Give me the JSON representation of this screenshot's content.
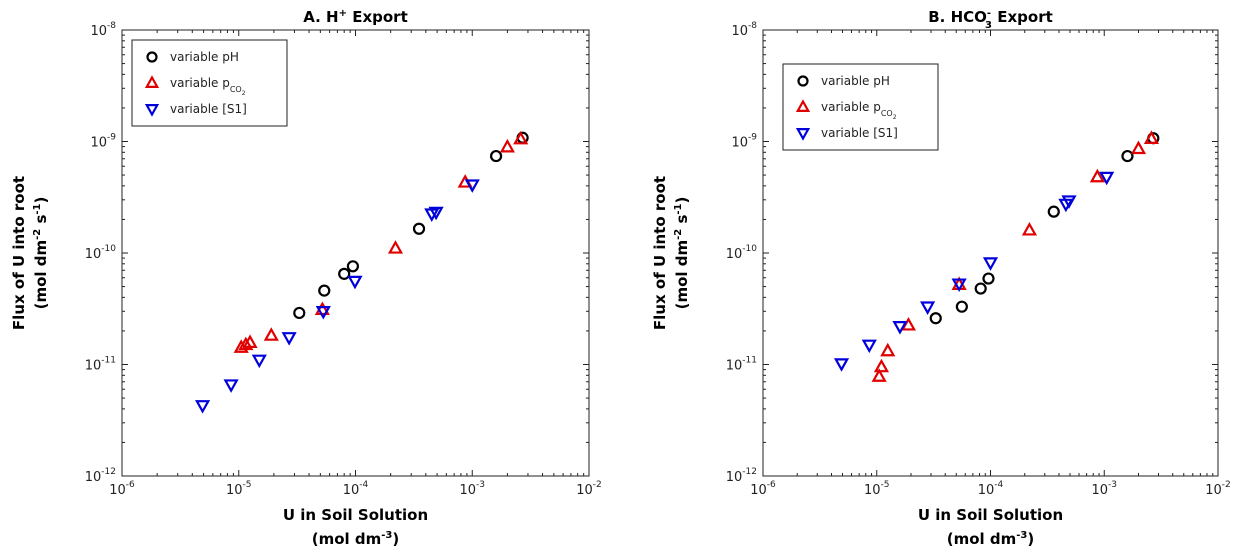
{
  "chart_data": [
    {
      "type": "scatter",
      "title_letter": "A. H",
      "title_sup": "+",
      "title_rest": " Export",
      "xlabel_line1": "U in Soil Solution",
      "xlabel_line2_pre": "(mol dm",
      "xlabel_line2_sup": "-3",
      "xlabel_line2_post": ")",
      "ylabel_line1": "Flux of U into root",
      "ylabel_line2_pre": "(mol dm",
      "ylabel_line2_sup1": "-2",
      "ylabel_line2_mid": " s",
      "ylabel_line2_sup2": "-1",
      "ylabel_line2_post": ")",
      "x_scale": "log",
      "y_scale": "log",
      "xlim": [
        1e-06,
        0.01
      ],
      "ylim": [
        1e-12,
        1e-08
      ],
      "x_ticks": [
        {
          "base": "10",
          "exp": "-6",
          "value": 1e-06
        },
        {
          "base": "10",
          "exp": "-5",
          "value": 1e-05
        },
        {
          "base": "10",
          "exp": "-4",
          "value": 0.0001
        },
        {
          "base": "10",
          "exp": "-3",
          "value": 0.001
        },
        {
          "base": "10",
          "exp": "-2",
          "value": 0.01
        }
      ],
      "y_ticks": [
        {
          "base": "10",
          "exp": "-12",
          "value": 1e-12
        },
        {
          "base": "10",
          "exp": "-11",
          "value": 1e-11
        },
        {
          "base": "10",
          "exp": "-10",
          "value": 1e-10
        },
        {
          "base": "10",
          "exp": "-9",
          "value": 1e-09
        },
        {
          "base": "10",
          "exp": "-8",
          "value": 1e-08
        }
      ],
      "legend_position": "top-left",
      "series": [
        {
          "name": "variable pH",
          "marker": "circle",
          "color": "#000000",
          "points": [
            [
              3.3e-05,
              2.9e-11
            ],
            [
              5.4e-05,
              4.6e-11
            ],
            [
              8e-05,
              6.5e-11
            ],
            [
              9.5e-05,
              7.6e-11
            ],
            [
              0.00035,
              1.65e-10
            ],
            [
              0.0016,
              7.4e-10
            ],
            [
              0.0027,
              1.08e-09
            ]
          ]
        },
        {
          "name": "variable p",
          "name_sub": "CO",
          "name_sub2": "2",
          "marker": "triangle-up",
          "color": "#e00000",
          "points": [
            [
              1.05e-05,
              1.42e-11
            ],
            [
              1.15e-05,
              1.5e-11
            ],
            [
              1.25e-05,
              1.57e-11
            ],
            [
              1.9e-05,
              1.82e-11
            ],
            [
              5.2e-05,
              3.1e-11
            ],
            [
              0.00022,
              1.1e-10
            ],
            [
              0.00087,
              4.3e-10
            ],
            [
              0.002,
              8.9e-10
            ],
            [
              0.0026,
              1.05e-09
            ]
          ]
        },
        {
          "name": "variable [S1]",
          "marker": "triangle-down",
          "color": "#0000dd",
          "points": [
            [
              4.9e-06,
              4.3e-12
            ],
            [
              8.6e-06,
              6.6e-12
            ],
            [
              1.5e-05,
              1.1e-11
            ],
            [
              2.7e-05,
              1.75e-11
            ],
            [
              5.3e-05,
              3e-11
            ],
            [
              9.9e-05,
              5.6e-11
            ],
            [
              0.00045,
              2.25e-10
            ],
            [
              0.00049,
              2.33e-10
            ],
            [
              0.001,
              4.1e-10
            ]
          ]
        }
      ]
    },
    {
      "type": "scatter",
      "title_letter": "B. HCO",
      "title_sup": "-",
      "title_sub": "3",
      "title_rest": " Export",
      "xlabel_line1": "U in Soil Solution",
      "xlabel_line2_pre": "(mol dm",
      "xlabel_line2_sup": "-3",
      "xlabel_line2_post": ")",
      "ylabel_line1": "Flux of U into root",
      "ylabel_line2_pre": "(mol dm",
      "ylabel_line2_sup1": "-2",
      "ylabel_line2_mid": " s",
      "ylabel_line2_sup2": "-1",
      "ylabel_line2_post": ")",
      "x_scale": "log",
      "y_scale": "log",
      "xlim": [
        1e-06,
        0.01
      ],
      "ylim": [
        1e-12,
        1e-08
      ],
      "x_ticks": [
        {
          "base": "10",
          "exp": "-6",
          "value": 1e-06
        },
        {
          "base": "10",
          "exp": "-5",
          "value": 1e-05
        },
        {
          "base": "10",
          "exp": "-4",
          "value": 0.0001
        },
        {
          "base": "10",
          "exp": "-3",
          "value": 0.001
        },
        {
          "base": "10",
          "exp": "-2",
          "value": 0.01
        }
      ],
      "y_ticks": [
        {
          "base": "10",
          "exp": "-12",
          "value": 1e-12
        },
        {
          "base": "10",
          "exp": "-11",
          "value": 1e-11
        },
        {
          "base": "10",
          "exp": "-10",
          "value": 1e-10
        },
        {
          "base": "10",
          "exp": "-9",
          "value": 1e-09
        },
        {
          "base": "10",
          "exp": "-8",
          "value": 1e-08
        }
      ],
      "legend_position": "top-left",
      "series": [
        {
          "name": "variable pH",
          "marker": "circle",
          "color": "#000000",
          "points": [
            [
              3.3e-05,
              2.6e-11
            ],
            [
              5.6e-05,
              3.3e-11
            ],
            [
              8.2e-05,
              4.8e-11
            ],
            [
              9.6e-05,
              5.9e-11
            ],
            [
              0.00036,
              2.35e-10
            ],
            [
              0.0016,
              7.4e-10
            ],
            [
              0.0027,
              1.07e-09
            ]
          ]
        },
        {
          "name": "variable p",
          "name_sub": "CO",
          "name_sub2": "2",
          "marker": "triangle-up",
          "color": "#e00000",
          "points": [
            [
              1.05e-05,
              7.8e-12
            ],
            [
              1.1e-05,
              9.5e-12
            ],
            [
              1.25e-05,
              1.32e-11
            ],
            [
              1.9e-05,
              2.25e-11
            ],
            [
              5.3e-05,
              5.2e-11
            ],
            [
              0.00022,
              1.6e-10
            ],
            [
              0.00087,
              4.8e-10
            ],
            [
              0.002,
              8.6e-10
            ],
            [
              0.0026,
              1.06e-09
            ]
          ]
        },
        {
          "name": "variable [S1]",
          "marker": "triangle-down",
          "color": "#0000dd",
          "points": [
            [
              4.9e-06,
              1.02e-11
            ],
            [
              8.6e-06,
              1.5e-11
            ],
            [
              1.6e-05,
              2.2e-11
            ],
            [
              2.8e-05,
              3.3e-11
            ],
            [
              5.3e-05,
              5.3e-11
            ],
            [
              0.0001,
              8.2e-11
            ],
            [
              0.00046,
              2.75e-10
            ],
            [
              0.00049,
              2.95e-10
            ],
            [
              0.00105,
              4.8e-10
            ]
          ]
        }
      ]
    }
  ]
}
